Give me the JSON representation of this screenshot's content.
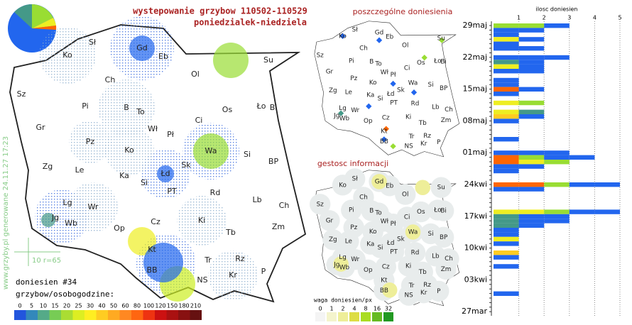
{
  "header": {
    "title": "wystepowanie grzybow 110502-110529",
    "subtitle": "poniedzialek-niedziela"
  },
  "map": {
    "labels": [
      "Sł",
      "Ko",
      "Gd",
      "Eb",
      "Su",
      "Ol",
      "Ch",
      "Sz",
      "Pi",
      "B",
      "To",
      "Os",
      "Ło",
      "Bi",
      "Ci",
      "Gr",
      "Wł",
      "Pł",
      "Pz",
      "Ko",
      "Wa",
      "Si",
      "Zg",
      "Le",
      "Ka",
      "Łd",
      "Sk",
      "BP",
      "Si",
      "PT",
      "Rd",
      "Lb",
      "Lg",
      "Wr",
      "Jg",
      "Wb",
      "Ch",
      "Zm",
      "Op",
      "Cz",
      "Ki",
      "Tb",
      "Kt",
      "Tr",
      "Kr",
      "BB",
      "NS",
      "P",
      "Rz"
    ]
  },
  "side": {
    "watermark": "www.grzyby.pl generowane 24.11.27 17:23",
    "scale_note": "10 r=65",
    "reports": "doniesien #34",
    "legend_title": "grzybow/osobogodzine:",
    "legend": [
      {
        "label": "0",
        "color": "#2255dd"
      },
      {
        "label": "5",
        "color": "#3388bb"
      },
      {
        "label": "10",
        "color": "#55aa88"
      },
      {
        "label": "15",
        "color": "#77cc55"
      },
      {
        "label": "20",
        "color": "#aadd33"
      },
      {
        "label": "25",
        "color": "#ddee22"
      },
      {
        "label": "30",
        "color": "#ffee22"
      },
      {
        "label": "40",
        "color": "#ffcc22"
      },
      {
        "label": "50",
        "color": "#ffaa22"
      },
      {
        "label": "60",
        "color": "#ff8822"
      },
      {
        "label": "80",
        "color": "#ff6611"
      },
      {
        "label": "100",
        "color": "#ee3311"
      },
      {
        "label": "120",
        "color": "#cc1111"
      },
      {
        "label": "150",
        "color": "#aa1111"
      },
      {
        "label": "180",
        "color": "#881111"
      },
      {
        "label": "210",
        "color": "#661111"
      }
    ]
  },
  "small_maps": {
    "title1": "poszczególne doniesienia",
    "title2": "gestosc informacji",
    "legend_title": "waga doniesien/px",
    "legend": [
      {
        "label": "0",
        "color": "#f4f4f4"
      },
      {
        "label": "1",
        "color": "#f4f4cc"
      },
      {
        "label": "2",
        "color": "#eeee99"
      },
      {
        "label": "4",
        "color": "#dddd44"
      },
      {
        "label": "8",
        "color": "#aadd22"
      },
      {
        "label": "16",
        "color": "#66bb22"
      },
      {
        "label": "32",
        "color": "#229922"
      }
    ]
  },
  "timeline": {
    "axis_title": "ilosc doniesien",
    "xticks": [
      1,
      2,
      3,
      4,
      5
    ],
    "dates": [
      {
        "label": "29maj",
        "day": 0
      },
      {
        "label": "22maj",
        "day": 7
      },
      {
        "label": "15maj",
        "day": 14
      },
      {
        "label": "08maj",
        "day": 21
      },
      {
        "label": "01maj",
        "day": 28
      },
      {
        "label": "24kwi",
        "day": 35
      },
      {
        "label": "17kwi",
        "day": 42
      },
      {
        "label": "10kwi",
        "day": 49
      },
      {
        "label": "03kwi",
        "day": 56
      },
      {
        "label": "27mar",
        "day": 63
      }
    ],
    "days": [
      {
        "day": 0,
        "count": 3,
        "colors": [
          "#99dd33",
          "#99dd33",
          "#2266ee"
        ]
      },
      {
        "day": 1,
        "count": 2,
        "colors": [
          "#2266ee",
          "#2266ee"
        ]
      },
      {
        "day": 2,
        "count": 1,
        "colors": [
          "#2266ee"
        ]
      },
      {
        "day": 3,
        "count": 2,
        "colors": [
          "#eeee22",
          "#2266ee"
        ]
      },
      {
        "day": 4,
        "count": 1,
        "colors": [
          "#2266ee"
        ]
      },
      {
        "day": 5,
        "count": 2,
        "colors": [
          "#2266ee",
          "#2266ee"
        ]
      },
      {
        "day": 7,
        "count": 3,
        "colors": [
          "#2266ee",
          "#2266ee",
          "#2266ee"
        ]
      },
      {
        "day": 8,
        "count": 2,
        "colors": [
          "#449988",
          "#2266ee"
        ]
      },
      {
        "day": 9,
        "count": 2,
        "colors": [
          "#eeee22",
          "#2266ee"
        ]
      },
      {
        "day": 10,
        "count": 2,
        "colors": [
          "#2266ee",
          "#2266ee"
        ]
      },
      {
        "day": 12,
        "count": 1,
        "colors": [
          "#2266ee"
        ]
      },
      {
        "day": 13,
        "count": 1,
        "colors": [
          "#2266ee"
        ]
      },
      {
        "day": 14,
        "count": 2,
        "colors": [
          "#ff6600",
          "#2266ee"
        ]
      },
      {
        "day": 15,
        "count": 1,
        "colors": [
          "#2266ee"
        ]
      },
      {
        "day": 17,
        "count": 2,
        "colors": [
          "#eeee22",
          "#99dd33"
        ]
      },
      {
        "day": 19,
        "count": 2,
        "colors": [
          "#eeee22",
          "#449988"
        ]
      },
      {
        "day": 20,
        "count": 2,
        "colors": [
          "#ffcc22",
          "#2266ee"
        ]
      },
      {
        "day": 21,
        "count": 1,
        "colors": [
          "#2266ee"
        ]
      },
      {
        "day": 25,
        "count": 1,
        "colors": [
          "#2266ee"
        ]
      },
      {
        "day": 28,
        "count": 3,
        "colors": [
          "#2266ee",
          "#2266ee",
          "#2266ee"
        ]
      },
      {
        "day": 29,
        "count": 4,
        "colors": [
          "#ff6600",
          "#99dd33",
          "#2266ee",
          "#2266ee"
        ]
      },
      {
        "day": 30,
        "count": 3,
        "colors": [
          "#ff6600",
          "#eeee22",
          "#99dd33"
        ]
      },
      {
        "day": 31,
        "count": 2,
        "colors": [
          "#2266ee",
          "#2266ee"
        ]
      },
      {
        "day": 32,
        "count": 1,
        "colors": [
          "#2266ee"
        ]
      },
      {
        "day": 35,
        "count": 5,
        "colors": [
          "#ff6600",
          "#ff6600",
          "#99dd33",
          "#2266ee",
          "#2266ee"
        ]
      },
      {
        "day": 36,
        "count": 2,
        "colors": [
          "#2266ee",
          "#2266ee"
        ]
      },
      {
        "day": 41,
        "count": 5,
        "colors": [
          "#eeee22",
          "#eeee22",
          "#99dd33",
          "#2266ee",
          "#2266ee"
        ]
      },
      {
        "day": 42,
        "count": 3,
        "colors": [
          "#449988",
          "#2266ee",
          "#2266ee"
        ]
      },
      {
        "day": 43,
        "count": 3,
        "colors": [
          "#449988",
          "#2266ee",
          "#2266ee"
        ]
      },
      {
        "day": 44,
        "count": 2,
        "colors": [
          "#449988",
          "#2266ee"
        ]
      },
      {
        "day": 45,
        "count": 1,
        "colors": [
          "#2266ee"
        ]
      },
      {
        "day": 46,
        "count": 1,
        "colors": [
          "#2266ee"
        ]
      },
      {
        "day": 47,
        "count": 1,
        "colors": [
          "#eeee22"
        ]
      },
      {
        "day": 48,
        "count": 1,
        "colors": [
          "#2266ee"
        ]
      },
      {
        "day": 50,
        "count": 1,
        "colors": [
          "#ffcc22"
        ]
      },
      {
        "day": 51,
        "count": 1,
        "colors": [
          "#2266ee"
        ]
      },
      {
        "day": 53,
        "count": 1,
        "colors": [
          "#2266ee"
        ]
      },
      {
        "day": 59,
        "count": 1,
        "colors": [
          "#2266ee"
        ]
      }
    ]
  }
}
